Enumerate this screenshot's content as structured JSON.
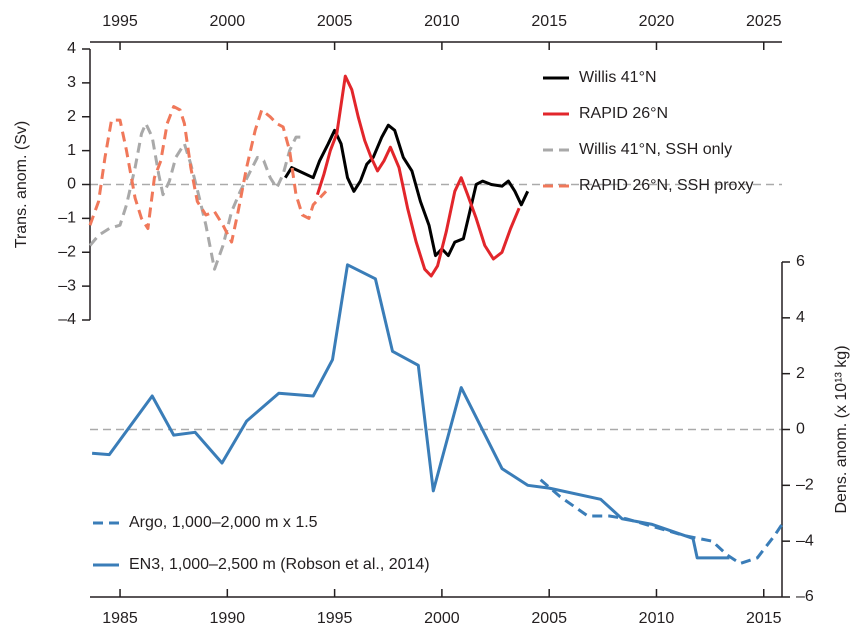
{
  "chart_data": [
    {
      "type": "line",
      "xaxis": "top",
      "yaxis": "left",
      "legend": "upper right",
      "hline": 0,
      "ylabel": "Trans. anom. (Sv)",
      "xlim": [
        1993.6,
        2025.85
      ],
      "xticks": [
        1995,
        2000,
        2005,
        2010,
        2015,
        2020,
        2025
      ],
      "ylim": [
        -4,
        4
      ],
      "yticks": [
        {
          "value": -4,
          "label": "–4"
        },
        {
          "value": -3,
          "label": "–3"
        },
        {
          "value": -2,
          "label": "–2"
        },
        {
          "value": -1,
          "label": "–1"
        },
        0,
        1,
        2,
        3,
        4
      ],
      "series": [
        {
          "name": "Willis 41°N",
          "color": "#000000",
          "dashed": false,
          "x": [
            2002.7,
            2003,
            2003.5,
            2004,
            2004.3,
            2004.7,
            2005,
            2005.3,
            2005.6,
            2005.9,
            2006.2,
            2006.5,
            2006.8,
            2007.2,
            2007.5,
            2007.8,
            2008.2,
            2008.6,
            2009,
            2009.4,
            2009.7,
            2010,
            2010.3,
            2010.6,
            2011,
            2011.3,
            2011.6,
            2011.9,
            2012.3,
            2012.8,
            2013.1,
            2013.4,
            2013.7,
            2014
          ],
          "values": [
            0.2,
            0.5,
            0.35,
            0.2,
            0.7,
            1.2,
            1.6,
            1.2,
            0.2,
            -0.2,
            0.1,
            0.6,
            0.8,
            1.4,
            1.75,
            1.6,
            0.8,
            0.4,
            -0.5,
            -1.2,
            -2.1,
            -1.9,
            -2.1,
            -1.7,
            -1.6,
            -0.8,
            0.0,
            0.1,
            0.0,
            -0.05,
            0.1,
            -0.2,
            -0.6,
            -0.2
          ]
        },
        {
          "name": "RAPID 26°N",
          "color": "#e2262b",
          "dashed": false,
          "x": [
            2004.2,
            2004.5,
            2004.8,
            2005.1,
            2005.5,
            2005.8,
            2006.1,
            2006.4,
            2006.7,
            2007,
            2007.3,
            2007.6,
            2008,
            2008.4,
            2008.8,
            2009.2,
            2009.5,
            2009.8,
            2010.2,
            2010.6,
            2010.9,
            2011.2,
            2011.6,
            2012,
            2012.4,
            2012.8,
            2013.2,
            2013.6
          ],
          "values": [
            -0.3,
            0.3,
            1.0,
            1.5,
            3.2,
            2.8,
            2.0,
            1.3,
            0.8,
            0.4,
            0.7,
            1.1,
            0.5,
            -0.7,
            -1.7,
            -2.5,
            -2.7,
            -2.4,
            -1.4,
            -0.2,
            0.2,
            -0.3,
            -1.0,
            -1.8,
            -2.2,
            -2.0,
            -1.3,
            -0.7
          ]
        },
        {
          "name": "Willis 41°N, SSH only",
          "color": "#a9a9a9",
          "dashed": true,
          "x": [
            1993.6,
            1994,
            1994.5,
            1995,
            1995.3,
            1995.7,
            1996,
            1996.2,
            1996.5,
            1996.8,
            1997,
            1997.3,
            1997.6,
            1998,
            1998.3,
            1998.7,
            1999,
            1999.4,
            1999.8,
            2000.2,
            2000.6,
            2001,
            2001.4,
            2001.7,
            2002,
            2002.3,
            2002.6,
            2002.9,
            2003.2,
            2003.4
          ],
          "values": [
            -1.8,
            -1.5,
            -1.3,
            -1.2,
            -0.6,
            0.5,
            1.5,
            1.8,
            1.4,
            0.3,
            -0.3,
            0.1,
            0.8,
            1.2,
            0.6,
            -0.4,
            -1.2,
            -2.5,
            -1.8,
            -0.8,
            -0.2,
            0.3,
            0.8,
            0.7,
            0.2,
            -0.1,
            0.3,
            1.0,
            1.4,
            1.4
          ]
        },
        {
          "name": "RAPID 26°N, SSH proxy",
          "color": "#f0785a",
          "dashed": true,
          "x": [
            1993.6,
            1994,
            1994.3,
            1994.6,
            1995,
            1995.3,
            1995.7,
            1996,
            1996.3,
            1996.6,
            1996.9,
            1997.2,
            1997.5,
            1997.8,
            1998,
            1998.3,
            1998.6,
            1999,
            1999.4,
            1999.8,
            2000.2,
            2000.5,
            2000.9,
            2001.3,
            2001.6,
            2002,
            2002.3,
            2002.6,
            2002.9,
            2003.2,
            2003.5,
            2003.8,
            2004,
            2004.3,
            2004.6
          ],
          "values": [
            -1.2,
            -0.5,
            0.8,
            1.9,
            1.9,
            1.0,
            -0.4,
            -1.0,
            -1.3,
            0.2,
            0.7,
            1.8,
            2.3,
            2.2,
            1.8,
            0.5,
            -0.5,
            -0.9,
            -0.8,
            -1.2,
            -1.7,
            -0.8,
            0.5,
            1.6,
            2.2,
            2.0,
            1.8,
            1.7,
            1.0,
            -0.3,
            -0.9,
            -1.0,
            -0.6,
            -0.4,
            -0.2
          ]
        }
      ]
    },
    {
      "type": "line",
      "xaxis": "bottom",
      "yaxis": "right",
      "legend": "lower left",
      "hline": 0,
      "ylabel": "Dens. anom. (x 10¹³ kg)",
      "xlim": [
        1983.6,
        2015.85
      ],
      "xticks": [
        1985,
        1990,
        1995,
        2000,
        2005,
        2010,
        2015
      ],
      "ylim": [
        -6,
        6
      ],
      "yticks": [
        {
          "value": -6,
          "label": "–6"
        },
        {
          "value": -4,
          "label": "–4"
        },
        {
          "value": -2,
          "label": "–2"
        },
        0,
        2,
        4,
        6
      ],
      "series": [
        {
          "name": "Argo, 1,000–2,000 m x 1.5",
          "color": "#3a7db8",
          "dashed": true,
          "x": [
            2004.6,
            2005.5,
            2006.8,
            2007.8,
            2008.6,
            2009.5,
            2010.4,
            2011.3,
            2012.6,
            2013.3,
            2013.9,
            2014.7,
            2015.5,
            2015.85
          ],
          "values": [
            -1.8,
            -2.4,
            -3.1,
            -3.1,
            -3.2,
            -3.4,
            -3.6,
            -3.8,
            -4.0,
            -4.5,
            -4.8,
            -4.6,
            -3.8,
            -3.4
          ]
        },
        {
          "name": "EN3, 1,000–2,500 m (Robson et al., 2014)",
          "color": "#3a7db8",
          "dashed": false,
          "x": [
            1983.7,
            1984.5,
            1986.5,
            1987.5,
            1988.5,
            1989.75,
            1990.9,
            1992.4,
            1994,
            1994.9,
            1995.6,
            1996.9,
            1997.7,
            1998.9,
            1999.6,
            2000.9,
            2002.8,
            2004,
            2005,
            2007.4,
            2008.4,
            2009.8,
            2011.7,
            2011.9,
            2013.4
          ],
          "values": [
            -0.85,
            -0.9,
            1.2,
            -0.2,
            -0.1,
            -1.2,
            0.3,
            1.3,
            1.2,
            2.5,
            5.9,
            5.4,
            2.8,
            2.3,
            -2.2,
            1.5,
            -1.4,
            -2.0,
            -2.1,
            -2.5,
            -3.2,
            -3.4,
            -3.9,
            -4.6,
            -4.6
          ]
        }
      ]
    }
  ]
}
